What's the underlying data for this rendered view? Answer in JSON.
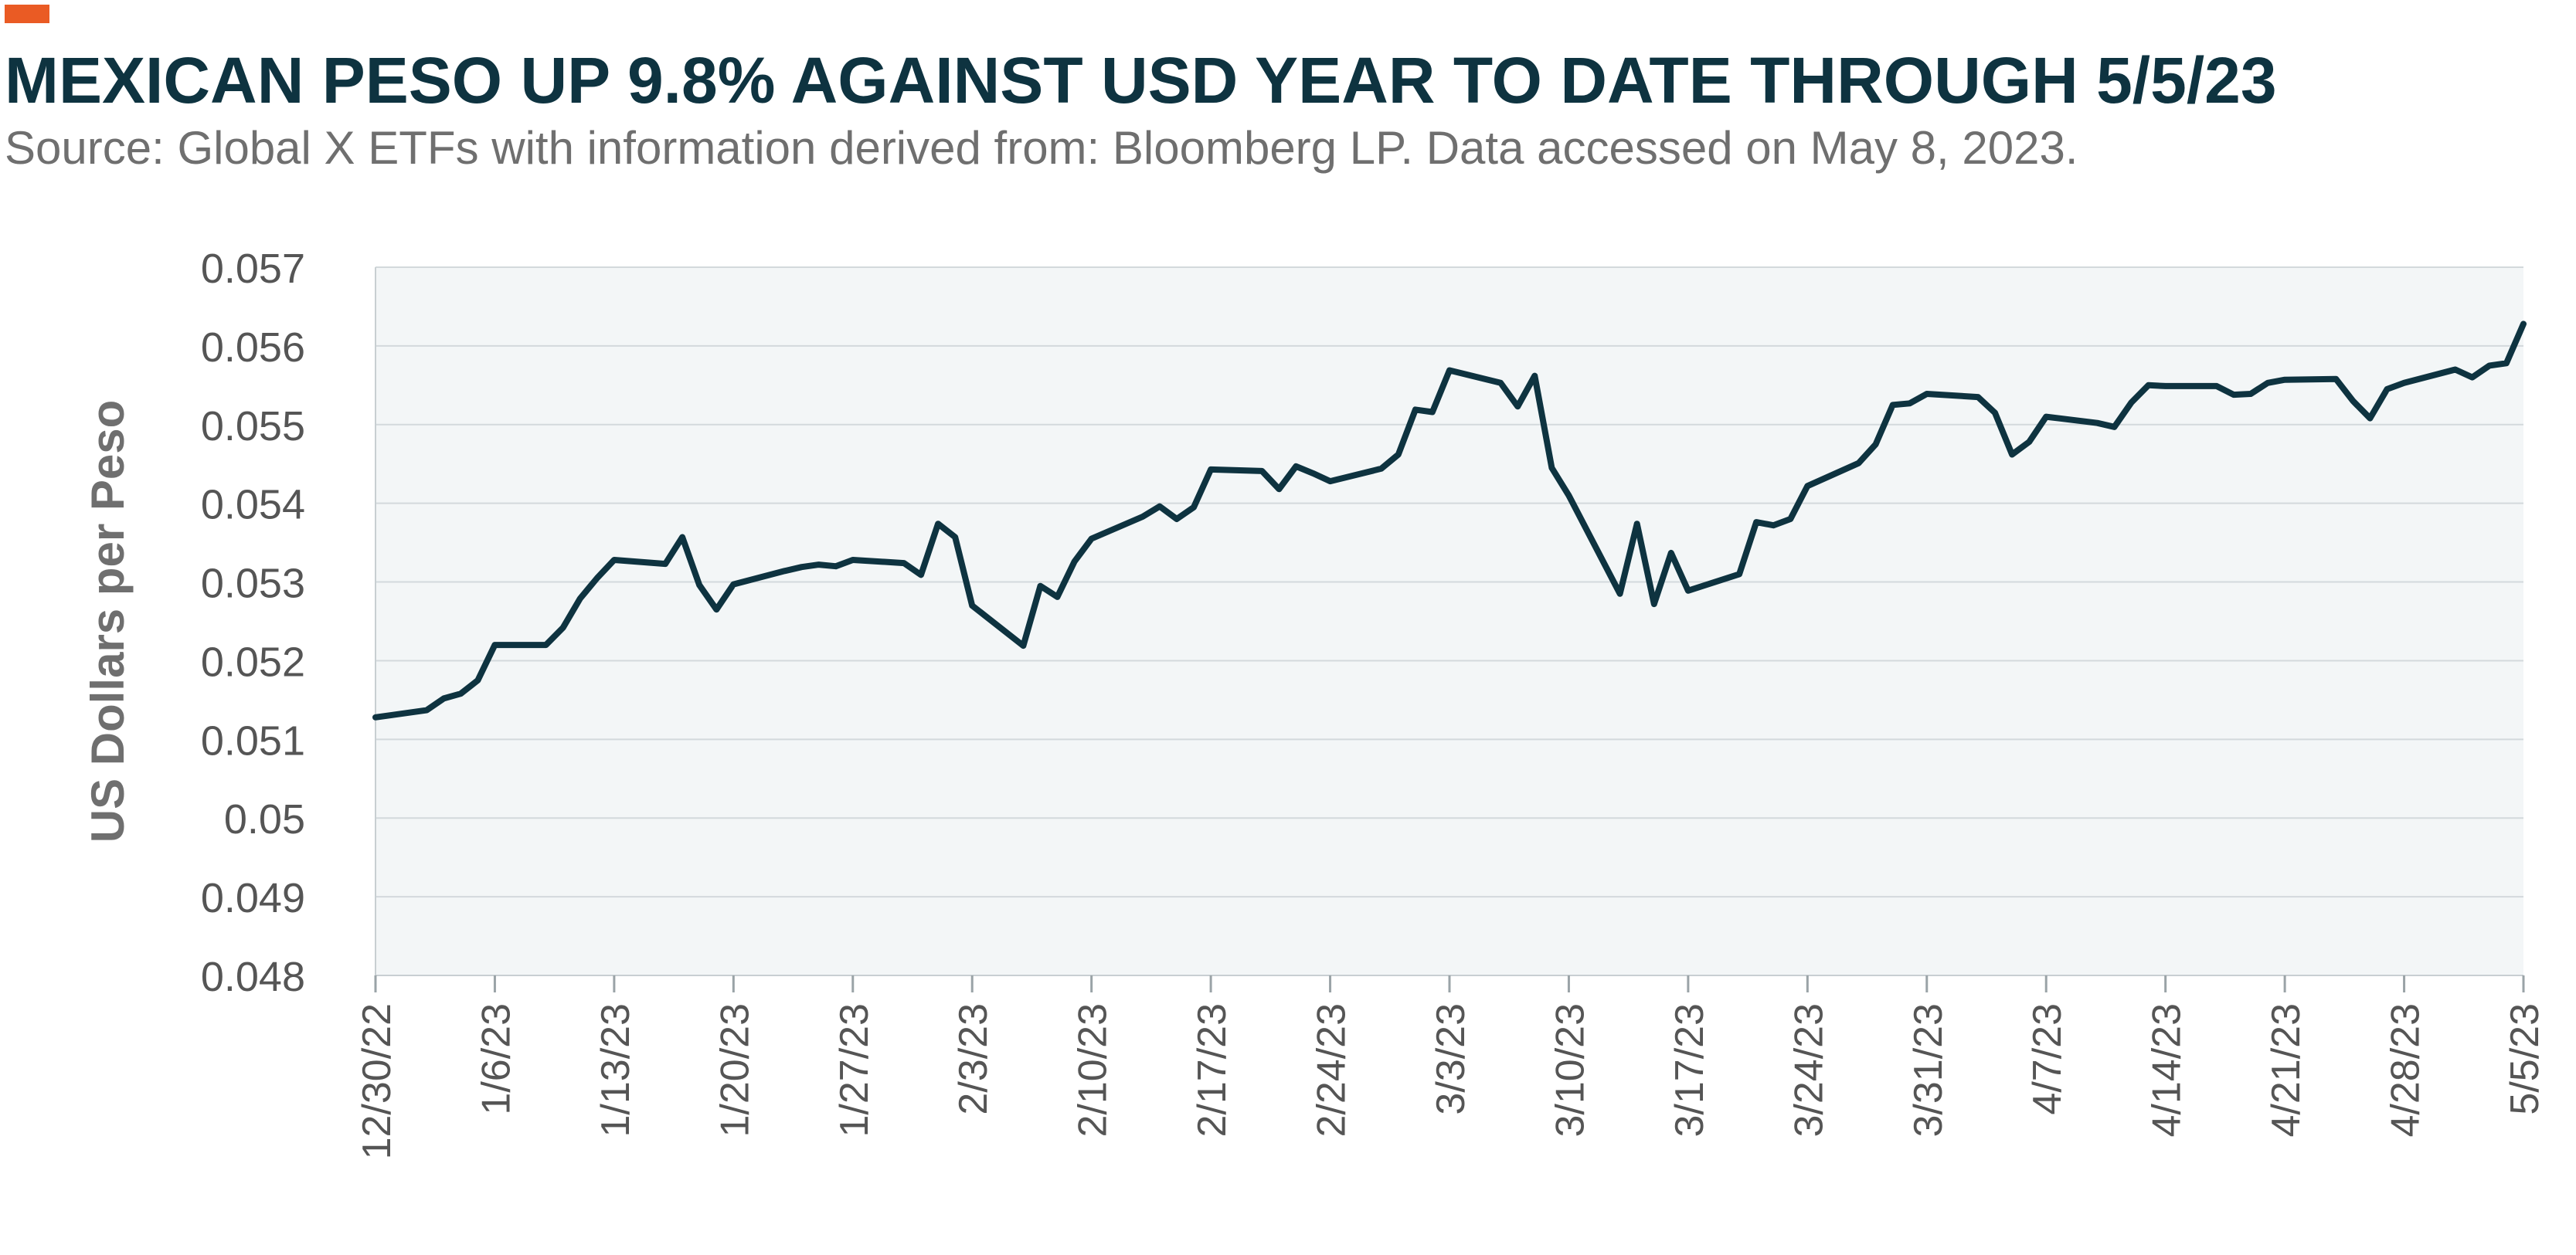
{
  "header": {
    "accent_color": "#ea5b24",
    "title": "MEXICAN PESO UP 9.8% AGAINST USD YEAR TO DATE THROUGH 5/5/23",
    "subtitle": "Source: Global X ETFs with information derived from: Bloomberg LP. Data accessed on May 8, 2023."
  },
  "chart_data": {
    "type": "line",
    "title": "MEXICAN PESO UP 9.8% AGAINST USD YEAR TO DATE THROUGH 5/5/23",
    "xlabel": "",
    "ylabel": "US Dollars per Peso",
    "ylim": [
      0.048,
      0.057
    ],
    "yticks": [
      "0.057",
      "0.056",
      "0.055",
      "0.054",
      "0.053",
      "0.052",
      "0.051",
      "0.05",
      "0.049",
      "0.048"
    ],
    "xlim": [
      "2022-12-30",
      "2023-05-05"
    ],
    "xticks": [
      "12/30/22",
      "1/6/23",
      "1/13/23",
      "1/20/23",
      "1/27/23",
      "2/3/23",
      "2/10/23",
      "2/17/23",
      "2/24/23",
      "3/3/23",
      "3/10/23",
      "3/17/23",
      "3/24/23",
      "3/31/23",
      "4/7/23",
      "4/14/23",
      "4/21/23",
      "4/28/23",
      "5/5/23"
    ],
    "grid": true,
    "plot_background": "#f3f6f7",
    "line_color": "#0e3340",
    "series": [
      {
        "x": [
          "2022-12-30",
          "2023-01-02",
          "2023-01-03",
          "2023-01-04",
          "2023-01-05",
          "2023-01-06",
          "2023-01-07",
          "2023-01-09",
          "2023-01-10",
          "2023-01-11",
          "2023-01-12",
          "2023-01-13",
          "2023-01-16",
          "2023-01-17",
          "2023-01-18",
          "2023-01-19",
          "2023-01-20",
          "2023-01-23",
          "2023-01-24",
          "2023-01-25",
          "2023-01-26",
          "2023-01-27",
          "2023-01-30",
          "2023-01-31",
          "2023-02-01",
          "2023-02-02",
          "2023-02-03",
          "2023-02-06",
          "2023-02-07",
          "2023-02-08",
          "2023-02-09",
          "2023-02-10",
          "2023-02-13",
          "2023-02-14",
          "2023-02-15",
          "2023-02-16",
          "2023-02-17",
          "2023-02-20",
          "2023-02-21",
          "2023-02-22",
          "2023-02-23",
          "2023-02-24",
          "2023-02-27",
          "2023-02-28",
          "2023-03-01",
          "2023-03-02",
          "2023-03-03",
          "2023-03-06",
          "2023-03-07",
          "2023-03-08",
          "2023-03-09",
          "2023-03-10",
          "2023-03-13",
          "2023-03-14",
          "2023-03-15",
          "2023-03-16",
          "2023-03-17",
          "2023-03-20",
          "2023-03-21",
          "2023-03-22",
          "2023-03-23",
          "2023-03-24",
          "2023-03-27",
          "2023-03-28",
          "2023-03-29",
          "2023-03-30",
          "2023-03-31",
          "2023-04-03",
          "2023-04-04",
          "2023-04-05",
          "2023-04-06",
          "2023-04-07",
          "2023-04-10",
          "2023-04-11",
          "2023-04-12",
          "2023-04-13",
          "2023-04-14",
          "2023-04-17",
          "2023-04-18",
          "2023-04-19",
          "2023-04-20",
          "2023-04-21",
          "2023-04-24",
          "2023-04-25",
          "2023-04-26",
          "2023-04-27",
          "2023-04-28",
          "2023-05-01",
          "2023-05-02",
          "2023-05-03",
          "2023-05-04",
          "2023-05-05"
        ],
        "y": [
          0.05128,
          0.05137,
          0.05152,
          0.05158,
          0.05175,
          0.0522,
          0.0522,
          0.0522,
          0.05242,
          0.05279,
          0.05305,
          0.05328,
          0.05323,
          0.05357,
          0.05296,
          0.05265,
          0.05297,
          0.05314,
          0.05319,
          0.05322,
          0.0532,
          0.05328,
          0.05324,
          0.05309,
          0.05374,
          0.05357,
          0.0527,
          0.05219,
          0.05295,
          0.05281,
          0.05326,
          0.05355,
          0.05383,
          0.05396,
          0.0538,
          0.05395,
          0.05443,
          0.05441,
          0.05418,
          0.05447,
          0.05438,
          0.05428,
          0.05444,
          0.05462,
          0.05519,
          0.05516,
          0.05569,
          0.05553,
          0.05523,
          0.05562,
          0.05445,
          0.0541,
          0.05285,
          0.05374,
          0.05272,
          0.05337,
          0.05289,
          0.0531,
          0.05376,
          0.05372,
          0.0538,
          0.05422,
          0.05451,
          0.05475,
          0.05525,
          0.05527,
          0.05539,
          0.05535,
          0.05515,
          0.05462,
          0.05478,
          0.0551,
          0.05502,
          0.05497,
          0.05528,
          0.0555,
          0.05549,
          0.05549,
          0.05538,
          0.05539,
          0.05553,
          0.05557,
          0.05558,
          0.0553,
          0.05508,
          0.05545,
          0.05553,
          0.0557,
          0.0556,
          0.05575,
          0.05578,
          0.05628
        ]
      }
    ]
  }
}
